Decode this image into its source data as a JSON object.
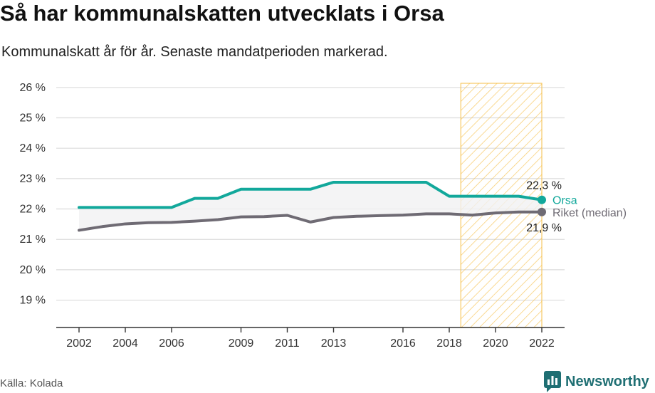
{
  "title": "Så har kommunalskatten utvecklats i Orsa",
  "subtitle": "Kommunalskatt år för år. Senaste mandatperioden markerad.",
  "source": "Källa: Kolada",
  "brand": "Newsworthy",
  "colors": {
    "orsa": "#12a89b",
    "riket": "#6f6b74",
    "highlight": "#f7c04a",
    "band": "#f1f1f3"
  },
  "chart_data": {
    "type": "line",
    "x": [
      2002,
      2003,
      2004,
      2005,
      2006,
      2007,
      2008,
      2009,
      2010,
      2011,
      2012,
      2013,
      2014,
      2015,
      2016,
      2017,
      2018,
      2019,
      2020,
      2021,
      2022
    ],
    "x_tick_labels": [
      "2002",
      "2004",
      "2006",
      "2009",
      "2011",
      "2013",
      "2016",
      "2018",
      "2020",
      "2022"
    ],
    "y_tick_labels": [
      "19 %",
      "20 %",
      "21 %",
      "22 %",
      "23 %",
      "24 %",
      "25 %",
      "26 %"
    ],
    "ylim": [
      18.1,
      26.3
    ],
    "highlight_period": [
      2018.5,
      2022
    ],
    "series": [
      {
        "name": "Orsa",
        "values": [
          22.05,
          22.05,
          22.05,
          22.05,
          22.05,
          22.35,
          22.35,
          22.65,
          22.65,
          22.65,
          22.65,
          22.88,
          22.88,
          22.88,
          22.88,
          22.88,
          22.42,
          22.42,
          22.42,
          22.42,
          22.3
        ],
        "end_label": "22,3 %"
      },
      {
        "name": "Riket (median)",
        "values": [
          21.3,
          21.42,
          21.51,
          21.55,
          21.56,
          21.6,
          21.65,
          21.74,
          21.75,
          21.79,
          21.57,
          21.72,
          21.76,
          21.78,
          21.8,
          21.84,
          21.84,
          21.8,
          21.87,
          21.9,
          21.9
        ],
        "end_label": "21,9 %"
      }
    ]
  }
}
